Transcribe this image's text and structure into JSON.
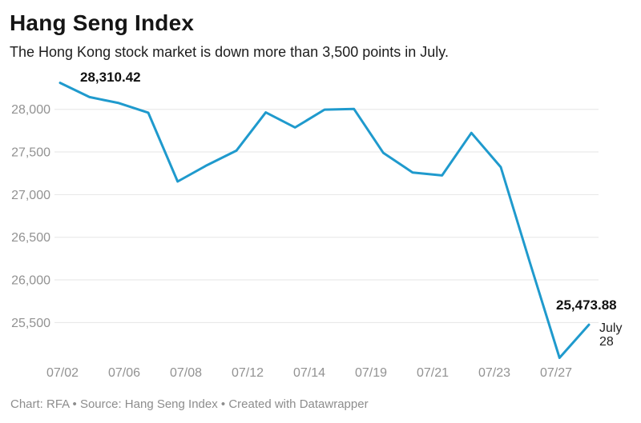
{
  "header": {
    "title": "Hang Seng Index",
    "subtitle": "The Hong Kong stock market is down more than 3,500 points in July."
  },
  "chart_data": {
    "type": "line",
    "title": "Hang Seng Index",
    "subtitle": "The Hong Kong stock market is down more than 3,500 points in July.",
    "x": [
      "07/02",
      "07/05",
      "07/06",
      "07/07",
      "07/08",
      "07/09",
      "07/12",
      "07/13",
      "07/14",
      "07/15",
      "07/16",
      "07/19",
      "07/20",
      "07/21",
      "07/22",
      "07/23",
      "07/26",
      "07/27",
      "07/28"
    ],
    "series": [
      {
        "name": "Hang Seng Index",
        "values": [
          28310.42,
          28143.5,
          28072.86,
          27960.62,
          27153.13,
          27344.54,
          27515.24,
          27963.41,
          27787.46,
          27996.27,
          28004.68,
          27489.78,
          27259.25,
          27224.58,
          27723.84,
          27321.98,
          26192.32,
          25086.43,
          25473.88
        ]
      }
    ],
    "x_tick_labels": [
      "07/02",
      "07/06",
      "07/08",
      "07/12",
      "07/14",
      "07/19",
      "07/21",
      "07/23",
      "07/27"
    ],
    "y_tick_values": [
      28000,
      27500,
      27000,
      26500,
      26000,
      25500
    ],
    "y_tick_labels": [
      "28,000",
      "27,500",
      "27,000",
      "26,500",
      "26,000",
      "25,500"
    ],
    "ylim": [
      25050,
      28400
    ],
    "grid": "horizontal-only",
    "legend": "none",
    "line_color": "#1f9acd",
    "grid_color": "#e6e6e6",
    "tick_color": "#929292"
  },
  "annotations": {
    "first_value": "28,310.42",
    "last_value": "25,473.88",
    "end_date": {
      "line1": "July",
      "line2": "28"
    }
  },
  "footer": {
    "prefix": "Chart: RFA • Source: Hang Seng Index • Created with ",
    "link_label": "Datawrapper"
  }
}
